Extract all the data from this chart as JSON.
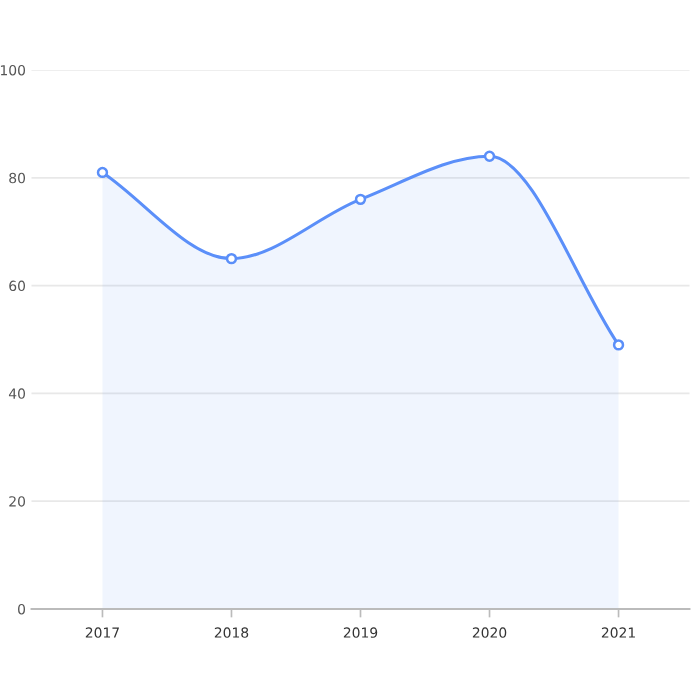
{
  "chart_data": {
    "type": "area",
    "categories": [
      "2017",
      "2018",
      "2019",
      "2020",
      "2021"
    ],
    "series": [
      {
        "color": "#5b8ff9",
        "values": [
          81,
          65,
          76,
          84,
          49
        ]
      }
    ],
    "ylim": [
      0,
      100
    ],
    "yticks": [
      0,
      20,
      40,
      60,
      80,
      100
    ],
    "grid": "y",
    "marker": "circle",
    "line_style": "solid",
    "legend": false
  }
}
